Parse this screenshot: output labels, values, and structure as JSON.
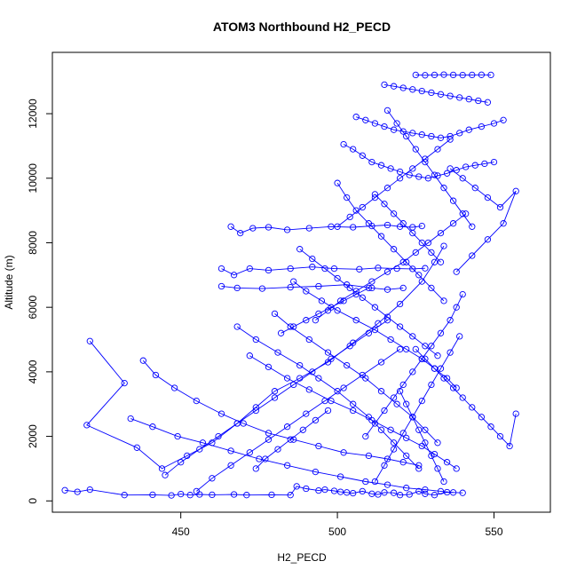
{
  "chart_data": {
    "type": "line",
    "title": "ATOM3 Northbound H2_PECD",
    "xlabel": "H2_PECD",
    "ylabel": "Altitude (m)",
    "xlim": [
      409,
      568
    ],
    "ylim": [
      -350,
      13900
    ],
    "xticks": [
      450,
      500,
      550
    ],
    "yticks": [
      0,
      2000,
      4000,
      6000,
      8000,
      10000,
      12000
    ],
    "series_color": "#0000ff",
    "marker": "open-circle",
    "grid": false,
    "legend": "none",
    "series": [
      {
        "x": [
          413,
          417,
          421,
          432,
          441,
          447,
          450,
          453,
          456,
          460,
          467,
          471,
          479,
          485,
          487,
          490,
          494,
          496,
          499,
          501,
          503,
          505,
          508,
          511,
          513,
          515,
          518,
          520,
          523,
          526,
          528,
          531,
          535,
          540
        ],
        "y": [
          330,
          280,
          350,
          180,
          190,
          170,
          210,
          180,
          200,
          190,
          200,
          180,
          190,
          180,
          450,
          380,
          320,
          350,
          310,
          280,
          260,
          240,
          300,
          220,
          200,
          260,
          250,
          180,
          200,
          300,
          220,
          180,
          270,
          250
        ]
      },
      {
        "x": [
          421,
          432,
          420,
          436,
          444,
          452,
          460,
          468,
          474,
          480,
          488,
          497,
          505,
          513,
          520,
          527,
          531,
          534
        ],
        "y": [
          4950,
          3650,
          2350,
          1650,
          1000,
          1400,
          1800,
          2400,
          2900,
          3400,
          3800,
          4300,
          4900,
          5500,
          6100,
          6800,
          7400,
          7900
        ]
      },
      {
        "x": [
          438,
          442,
          448,
          455,
          463,
          470,
          478,
          486,
          494,
          502,
          510,
          516,
          521,
          526
        ],
        "y": [
          4350,
          3900,
          3500,
          3100,
          2700,
          2400,
          2100,
          1900,
          1700,
          1500,
          1400,
          1300,
          1200,
          1100
        ]
      },
      {
        "x": [
          434,
          441,
          449,
          457,
          466,
          475,
          484,
          493,
          501,
          509,
          516,
          522,
          528,
          533,
          537
        ],
        "y": [
          2550,
          2300,
          2000,
          1800,
          1550,
          1300,
          1100,
          900,
          750,
          600,
          500,
          400,
          350,
          300,
          260
        ]
      },
      {
        "x": [
          463,
          467,
          472,
          478,
          485,
          492,
          499,
          507,
          513,
          519,
          524,
          528
        ],
        "y": [
          7200,
          7000,
          7200,
          7150,
          7200,
          7250,
          7200,
          7180,
          7220,
          7200,
          7190,
          7210
        ]
      },
      {
        "x": [
          463,
          468,
          476,
          485,
          494,
          503,
          511,
          516,
          521
        ],
        "y": [
          6650,
          6600,
          6580,
          6620,
          6650,
          6700,
          6600,
          6550,
          6600
        ]
      },
      {
        "x": [
          466,
          469,
          473,
          478,
          484,
          491,
          498,
          505,
          511,
          516,
          520,
          524,
          527
        ],
        "y": [
          8500,
          8300,
          8450,
          8480,
          8400,
          8450,
          8500,
          8480,
          8520,
          8550,
          8500,
          8480,
          8520
        ]
      },
      {
        "x": [
          468,
          474,
          481,
          488,
          494,
          500,
          505,
          510,
          514,
          518,
          522,
          526
        ],
        "y": [
          5400,
          5000,
          4600,
          4200,
          3800,
          3400,
          3000,
          2600,
          2200,
          1800,
          1400,
          1000
        ]
      },
      {
        "x": [
          472,
          478,
          484,
          491,
          498,
          505,
          511,
          517,
          522,
          527,
          531,
          535,
          538
        ],
        "y": [
          4500,
          4150,
          3800,
          3450,
          3100,
          2800,
          2500,
          2200,
          1950,
          1700,
          1450,
          1200,
          1000
        ]
      },
      {
        "x": [
          480,
          485,
          491,
          497,
          503,
          509,
          514,
          519,
          524,
          528,
          532
        ],
        "y": [
          5800,
          5400,
          5000,
          4600,
          4200,
          3800,
          3400,
          3000,
          2600,
          2200,
          1800
        ]
      },
      {
        "x": [
          486,
          490,
          495,
          500,
          506,
          512,
          517,
          522,
          527,
          531,
          535,
          538
        ],
        "y": [
          6800,
          6500,
          6200,
          5900,
          5600,
          5300,
          5000,
          4700,
          4400,
          4100,
          3800,
          3500
        ]
      },
      {
        "x": [
          493,
          497,
          501,
          506,
          511,
          516,
          521,
          525,
          529,
          533,
          537,
          541
        ],
        "y": [
          5600,
          5900,
          6200,
          6500,
          6800,
          7100,
          7400,
          7700,
          8000,
          8300,
          8600,
          8900
        ]
      },
      {
        "x": [
          500,
          503,
          506,
          510,
          514,
          518,
          522,
          526,
          530,
          534
        ],
        "y": [
          9850,
          9400,
          9000,
          8600,
          8200,
          7800,
          7400,
          7000,
          6600,
          6200
        ]
      },
      {
        "x": [
          502,
          505,
          508,
          511,
          514,
          517,
          520,
          523,
          526,
          529,
          532,
          535,
          538,
          541,
          544,
          547,
          550
        ],
        "y": [
          11050,
          10900,
          10700,
          10500,
          10400,
          10300,
          10200,
          10100,
          10050,
          10000,
          10080,
          10150,
          10250,
          10350,
          10400,
          10450,
          10500
        ]
      },
      {
        "x": [
          506,
          509,
          512,
          515,
          518,
          521,
          524,
          527,
          530,
          533,
          536,
          539,
          542,
          546,
          550,
          553
        ],
        "y": [
          11900,
          11800,
          11700,
          11600,
          11500,
          11450,
          11400,
          11350,
          11300,
          11250,
          11300,
          11400,
          11500,
          11600,
          11700,
          11800
        ]
      },
      {
        "x": [
          515,
          518,
          521,
          524,
          527,
          530,
          533,
          536,
          539,
          542,
          545,
          548
        ],
        "y": [
          12900,
          12850,
          12800,
          12750,
          12700,
          12650,
          12600,
          12550,
          12500,
          12450,
          12400,
          12350
        ]
      },
      {
        "x": [
          525,
          528,
          531,
          534,
          537,
          540,
          543,
          546,
          549
        ],
        "y": [
          13200,
          13190,
          13200,
          13210,
          13200,
          13195,
          13200,
          13205,
          13200
        ]
      },
      {
        "x": [
          536,
          540,
          544,
          548,
          552,
          557,
          553,
          548,
          543,
          538
        ],
        "y": [
          10300,
          10000,
          9700,
          9400,
          9100,
          9600,
          8600,
          8100,
          7600,
          7100
        ]
      },
      {
        "x": [
          525,
          528,
          531,
          534,
          537,
          540,
          543,
          546,
          549,
          552,
          555,
          557
        ],
        "y": [
          4700,
          4400,
          4100,
          3800,
          3500,
          3200,
          2900,
          2600,
          2300,
          2000,
          1700,
          2700
        ]
      },
      {
        "x": [
          509,
          512,
          515,
          518,
          521,
          524,
          527,
          530,
          533,
          536,
          538,
          540
        ],
        "y": [
          2000,
          2400,
          2800,
          3200,
          3600,
          4000,
          4400,
          4800,
          5200,
          5600,
          6000,
          6400
        ]
      },
      {
        "x": [
          512,
          515,
          518,
          521,
          524,
          527,
          530,
          533,
          536,
          539
        ],
        "y": [
          600,
          1100,
          1600,
          2100,
          2600,
          3100,
          3600,
          4100,
          4600,
          5100
        ]
      },
      {
        "x": [
          445,
          450,
          456,
          462,
          468,
          474,
          480,
          486,
          492,
          498,
          504,
          510,
          516
        ],
        "y": [
          800,
          1200,
          1600,
          2000,
          2400,
          2800,
          3200,
          3600,
          4000,
          4400,
          4800,
          5200,
          5600
        ]
      },
      {
        "x": [
          455,
          460,
          466,
          472,
          478,
          484,
          490,
          496,
          502,
          508,
          514,
          520
        ],
        "y": [
          300,
          700,
          1100,
          1500,
          1900,
          2300,
          2700,
          3100,
          3500,
          3900,
          4300,
          4700
        ]
      },
      {
        "x": [
          488,
          492,
          496,
          500,
          504,
          508,
          512,
          516,
          520,
          524,
          528,
          532
        ],
        "y": [
          7800,
          7500,
          7200,
          6900,
          6600,
          6300,
          6000,
          5700,
          5400,
          5100,
          4800,
          4500
        ]
      },
      {
        "x": [
          500,
          504,
          508,
          512,
          516,
          520,
          524,
          528,
          532,
          536
        ],
        "y": [
          8500,
          8800,
          9100,
          9400,
          9700,
          10000,
          10300,
          10600,
          10900,
          11200
        ]
      },
      {
        "x": [
          512,
          515,
          518,
          521,
          524,
          527,
          530,
          533
        ],
        "y": [
          9500,
          9200,
          8900,
          8600,
          8300,
          8000,
          7700,
          7400
        ]
      },
      {
        "x": [
          516,
          519,
          522,
          525,
          528,
          531,
          534,
          537,
          540,
          543
        ],
        "y": [
          12100,
          11700,
          11300,
          10900,
          10500,
          10100,
          9700,
          9300,
          8900,
          8500
        ]
      },
      {
        "x": [
          520,
          522,
          524,
          526,
          528,
          530,
          532,
          534
        ],
        "y": [
          3400,
          3000,
          2600,
          2200,
          1800,
          1400,
          1000,
          600
        ]
      },
      {
        "x": [
          474,
          477,
          481,
          485,
          489,
          493,
          497
        ],
        "y": [
          1000,
          1300,
          1600,
          1900,
          2200,
          2500,
          2800
        ]
      },
      {
        "x": [
          482,
          486,
          490,
          494,
          498,
          502,
          506,
          510
        ],
        "y": [
          5200,
          5400,
          5600,
          5800,
          6000,
          6200,
          6400,
          6600
        ]
      }
    ]
  }
}
